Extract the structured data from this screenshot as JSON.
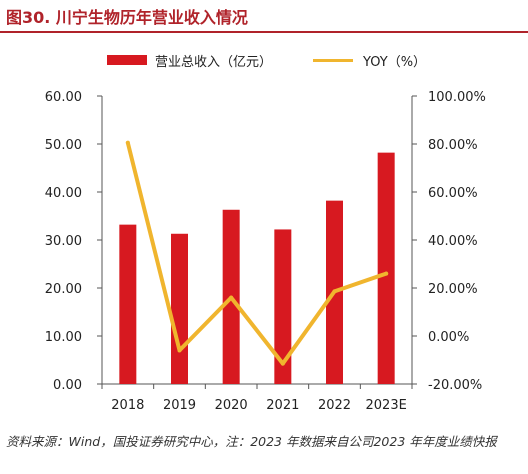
{
  "figure": {
    "title": "图30. 川宁生物历年营业收入情况",
    "source": "资料来源：Wind，国投证券研究中心，注：2023 年数据来自公司2023 年年度业绩快报"
  },
  "colors": {
    "title": "#b0232a",
    "bar": "#d71920",
    "line": "#f0b52e",
    "axis": "#555555",
    "text": "#222222"
  },
  "chart_data": {
    "type": "bar",
    "categories": [
      "2018",
      "2019",
      "2020",
      "2021",
      "2022",
      "2023E"
    ],
    "series": [
      {
        "name": "营业总收入（亿元）",
        "type": "bar",
        "axis": "left",
        "values": [
          33.2,
          31.3,
          36.3,
          32.2,
          38.2,
          48.2
        ]
      },
      {
        "name": "YOY（%）",
        "type": "line",
        "axis": "right",
        "values": [
          80.5,
          -6.0,
          16.0,
          -11.5,
          18.6,
          26.0
        ]
      }
    ],
    "y_left": {
      "lim": [
        0,
        60
      ],
      "ticks": [
        "0.00",
        "10.00",
        "20.00",
        "30.00",
        "40.00",
        "50.00",
        "60.00"
      ]
    },
    "y_right": {
      "lim": [
        -20,
        100
      ],
      "ticks": [
        "-20.00%",
        "0.00%",
        "20.00%",
        "40.00%",
        "60.00%",
        "80.00%",
        "100.00%"
      ]
    },
    "legend_position": "top",
    "grid": false
  }
}
